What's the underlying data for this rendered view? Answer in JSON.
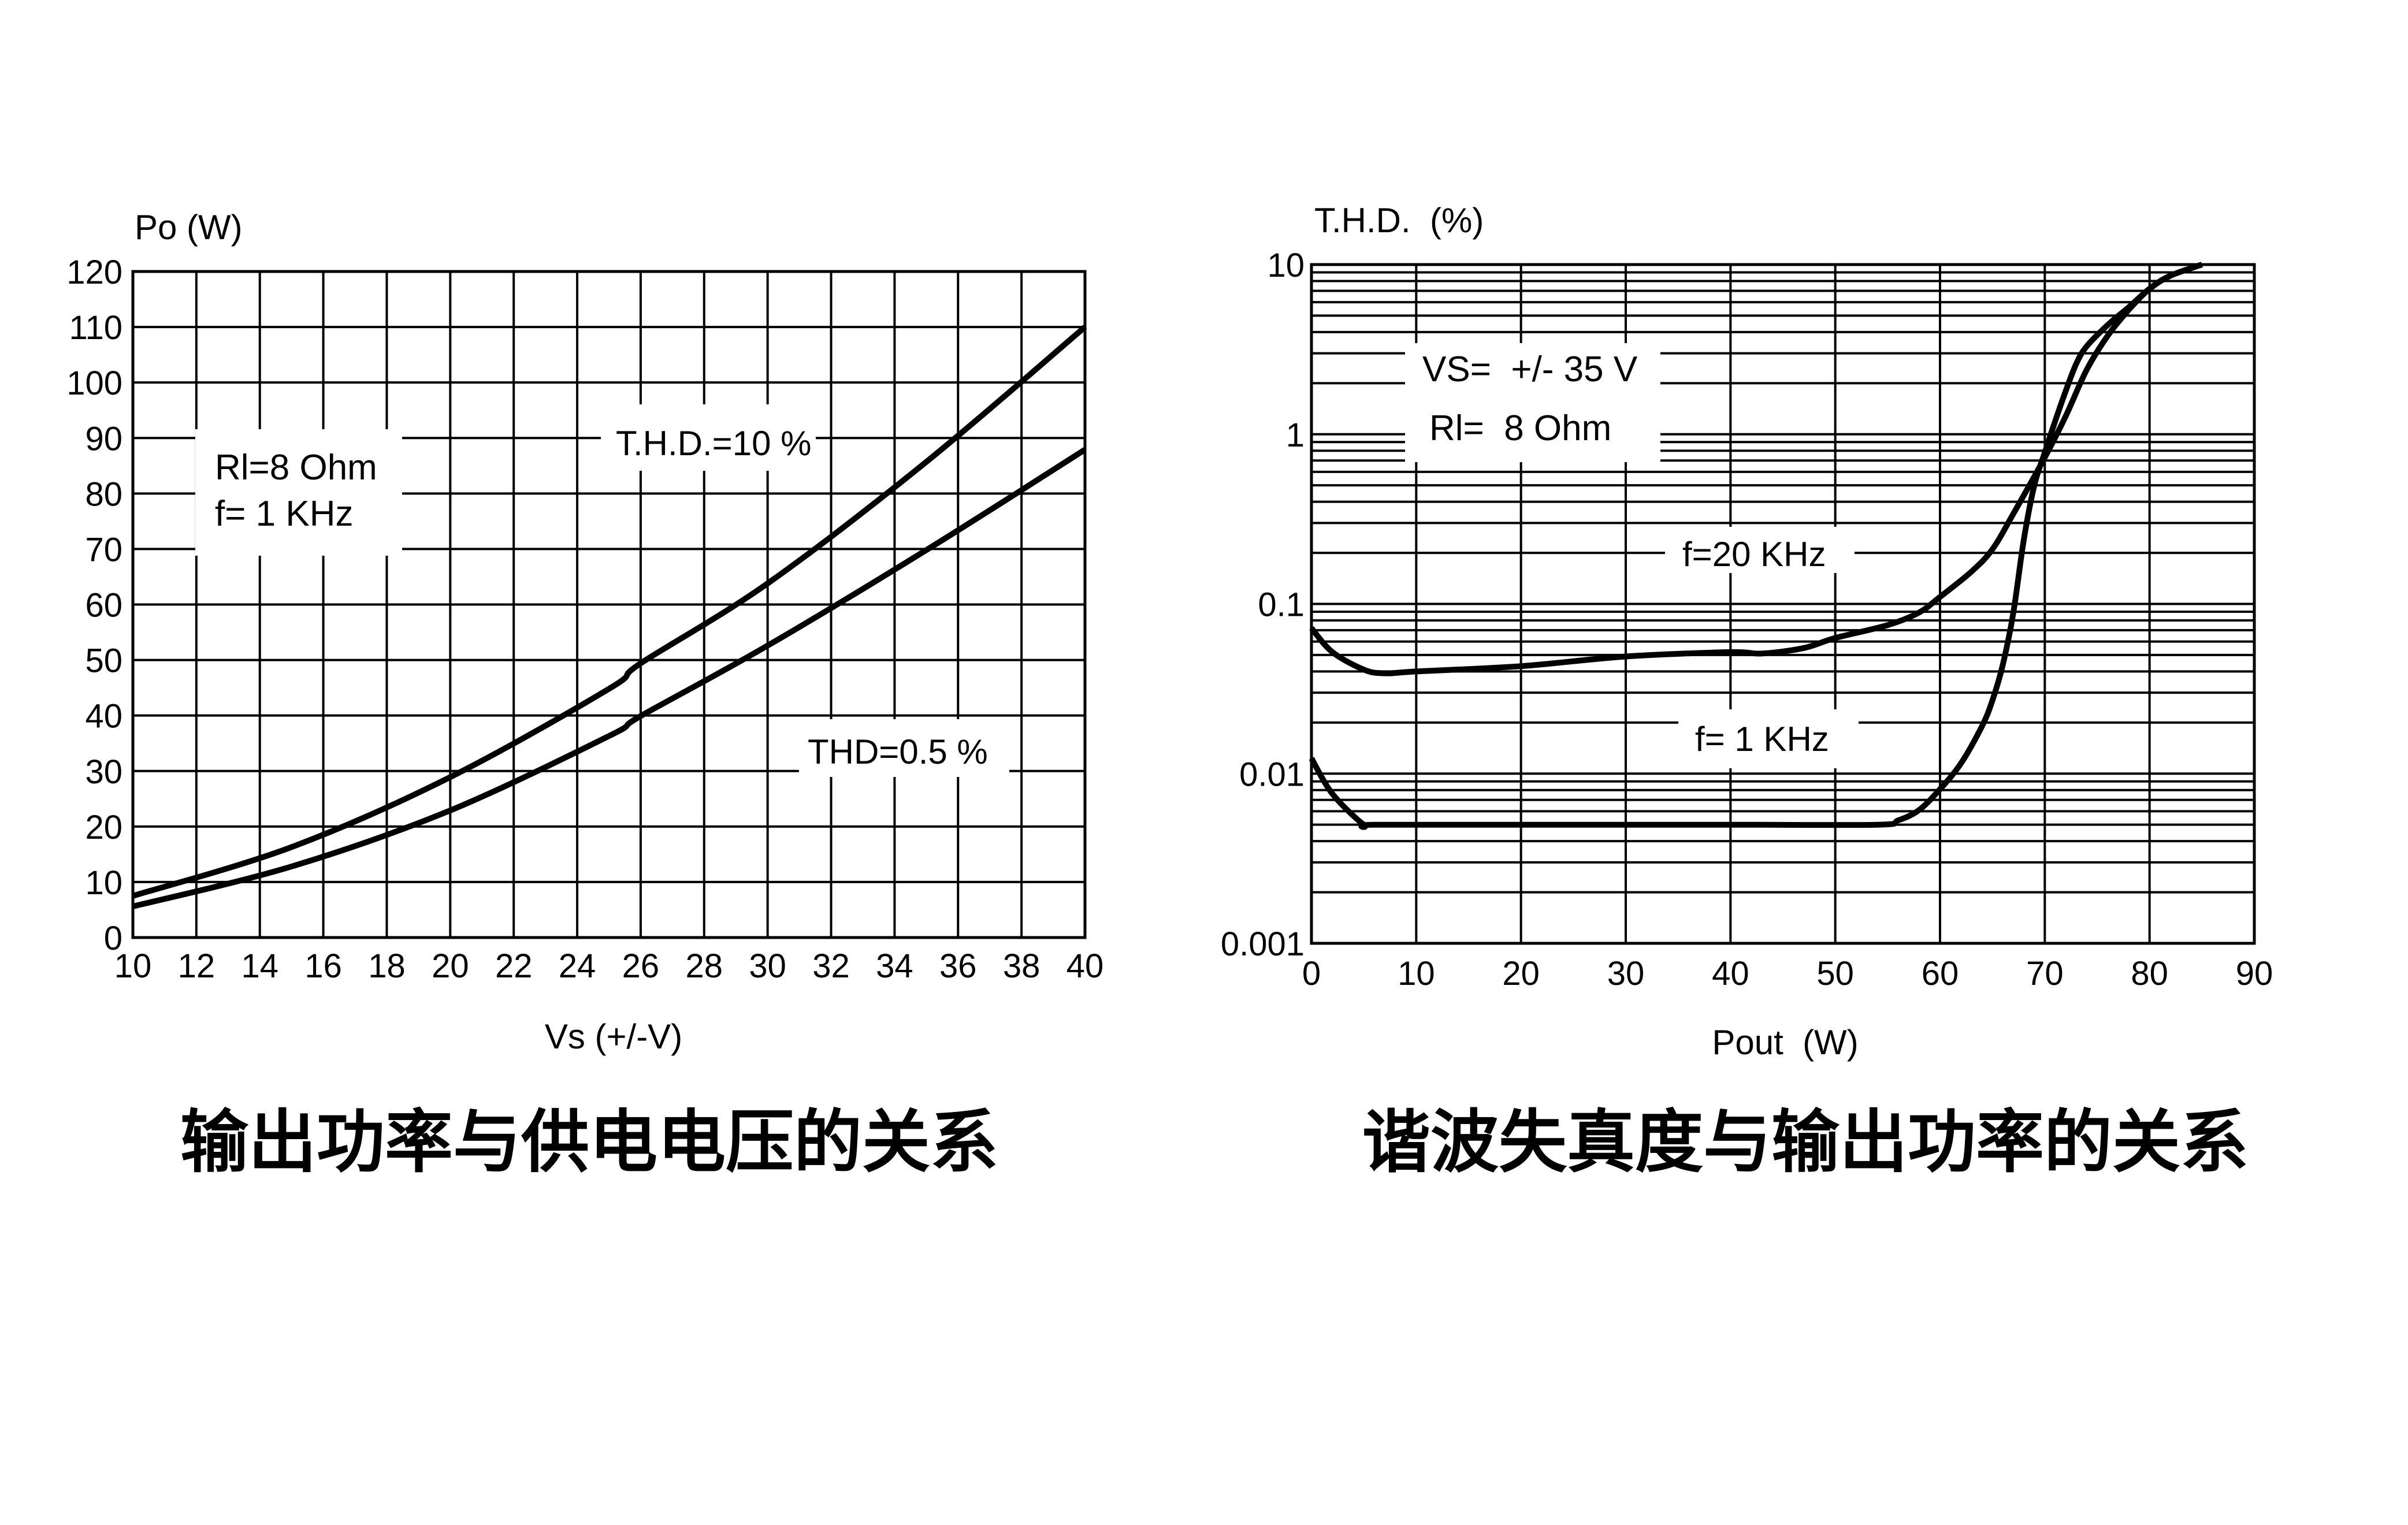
{
  "chart_data": [
    {
      "type": "line",
      "title": "输出功率与供电电压的关系",
      "xlabel": "Vs (+/-V)",
      "ylabel": "Po (W)",
      "xlim": [
        10,
        40
      ],
      "ylim": [
        0,
        120
      ],
      "grid": true,
      "x_ticks": [
        "10",
        "12",
        "14",
        "16",
        "18",
        "20",
        "22",
        "24",
        "26",
        "28",
        "30",
        "32",
        "34",
        "36",
        "38",
        "40"
      ],
      "y_ticks": [
        "0",
        "10",
        "20",
        "30",
        "40",
        "50",
        "60",
        "70",
        "80",
        "90",
        "100",
        "110",
        "120"
      ],
      "annotations": [
        {
          "text": "Rl=8 Ohm"
        },
        {
          "text": "f= 1 KHz"
        }
      ],
      "series": [
        {
          "name": "T.H.D.=10 %",
          "x": [
            10,
            15,
            20,
            25,
            26,
            30,
            35,
            40
          ],
          "y": [
            7.5,
            16.3,
            28.9,
            44.8,
            49.4,
            63.8,
            85.7,
            110
          ]
        },
        {
          "name": "THD=0.5 %",
          "x": [
            10,
            15,
            20,
            25,
            26,
            30,
            35,
            40
          ],
          "y": [
            5.6,
            12.8,
            22.9,
            36.3,
            39.9,
            52.6,
            69.8,
            87.9
          ]
        }
      ]
    },
    {
      "type": "line",
      "title": "谐波失真度与输出功率的关系",
      "xlabel": "Pout  (W)",
      "ylabel": "T.H.D.  (%)",
      "xlim": [
        0,
        90
      ],
      "ylim": [
        0.001,
        10
      ],
      "yscale": "log",
      "grid": true,
      "x_ticks": [
        "0",
        "10",
        "20",
        "30",
        "40",
        "50",
        "60",
        "70",
        "80",
        "90"
      ],
      "y_ticks": [
        "0.001",
        "0.01",
        "0.1",
        "1",
        "10"
      ],
      "annotations": [
        {
          "text": "VS=  +/- 35 V"
        },
        {
          "text": "Rl=  8 Ohm"
        }
      ],
      "series": [
        {
          "name": "f=20 KHz",
          "x": [
            0,
            2,
            5,
            7,
            10,
            20,
            30,
            40,
            43,
            47,
            50,
            55,
            58,
            60,
            63,
            65,
            67,
            70,
            72,
            74,
            76,
            78,
            80,
            82,
            85
          ],
          "y": [
            0.072,
            0.052,
            0.041,
            0.039,
            0.04,
            0.043,
            0.049,
            0.052,
            0.051,
            0.055,
            0.063,
            0.075,
            0.089,
            0.11,
            0.155,
            0.21,
            0.34,
            0.73,
            1.28,
            2.4,
            3.8,
            5.4,
            7.2,
            8.6,
            10
          ]
        },
        {
          "name": "f= 1 KHz",
          "x": [
            0,
            2,
            5,
            6,
            20,
            40,
            54,
            56,
            58,
            60,
            62,
            64,
            65,
            66,
            67,
            68,
            69,
            70,
            71,
            72,
            73,
            74,
            76,
            78,
            80,
            82,
            85
          ],
          "y": [
            0.0123,
            0.0076,
            0.005,
            0.005,
            0.005,
            0.005,
            0.005,
            0.0053,
            0.0061,
            0.0081,
            0.0115,
            0.019,
            0.027,
            0.044,
            0.089,
            0.24,
            0.5,
            0.78,
            1.2,
            1.8,
            2.6,
            3.3,
            4.4,
            5.6,
            7.2,
            8.6,
            10
          ]
        }
      ]
    }
  ],
  "left_chart": {
    "ylabel": "Po (W)",
    "xlabel": "Vs (+/-V)",
    "title": "输出功率与供电电压的关系",
    "note_line1": "Rl=8 Ohm",
    "note_line2": "f= 1 KHz",
    "series_label_high": "T.H.D.=10 %",
    "series_label_low": "THD=0.5 %"
  },
  "right_chart": {
    "ylabel": "T.H.D.  (%)",
    "xlabel": "Pout  (W)",
    "title": "谐波失真度与输出功率的关系",
    "note_line1": "VS=  +/- 35 V",
    "note_line2": "Rl=  8 Ohm",
    "series_label_20k": "f=20 KHz",
    "series_label_1k": "f= 1 KHz"
  },
  "colors": {
    "line": "#000000",
    "background": "#ffffff"
  }
}
